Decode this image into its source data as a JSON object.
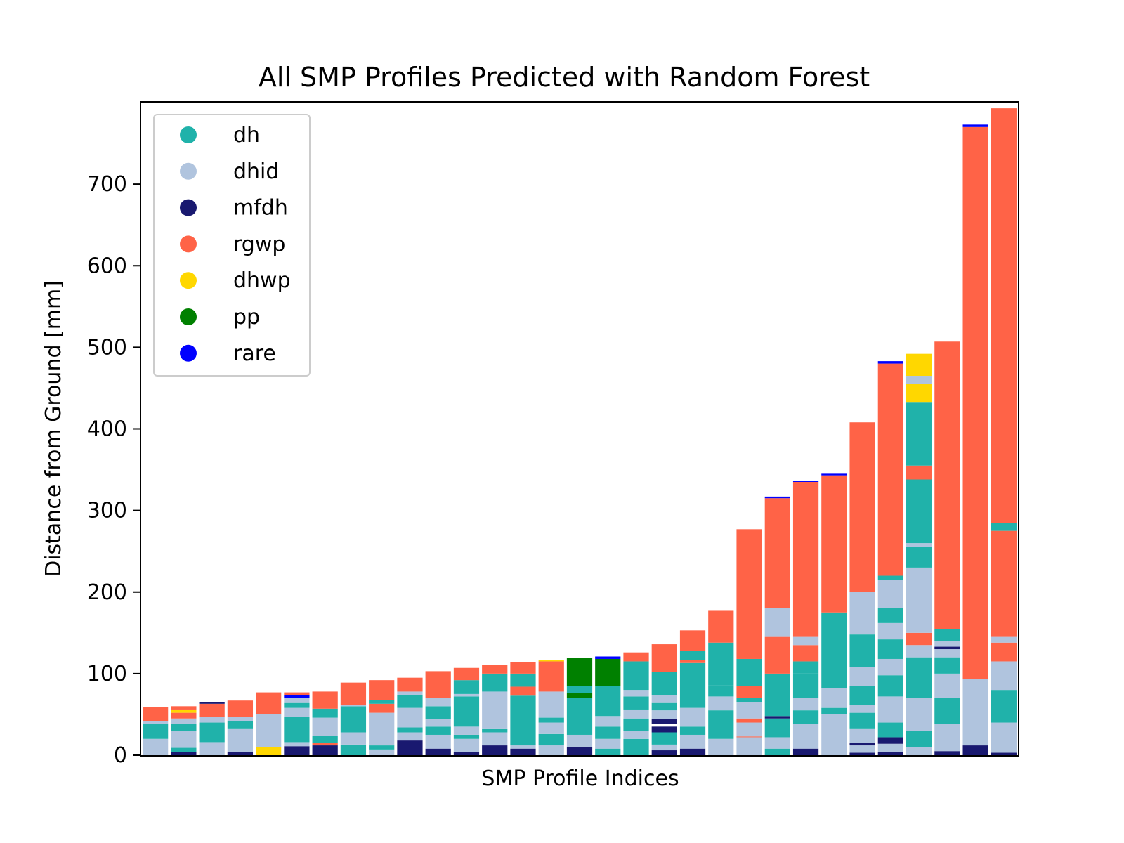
{
  "chart_data": {
    "type": "bar",
    "stacked": true,
    "title": "All SMP Profiles Predicted with Random Forest",
    "xlabel": "SMP Profile Indices",
    "ylabel": "Distance from Ground [mm]",
    "ylim": [
      0,
      800
    ],
    "yticks": [
      0,
      100,
      200,
      300,
      400,
      500,
      600,
      700
    ],
    "legend_position": "upper-left",
    "classes": [
      {
        "name": "dh",
        "color": "#20b2aa"
      },
      {
        "name": "dhid",
        "color": "#b0c4de"
      },
      {
        "name": "mfdh",
        "color": "#191970"
      },
      {
        "name": "rgwp",
        "color": "#ff6347"
      },
      {
        "name": "dhwp",
        "color": "#ffd700"
      },
      {
        "name": "pp",
        "color": "#008000"
      },
      {
        "name": "rare",
        "color": "#0000ff"
      }
    ],
    "profiles": [
      [
        [
          "dhid",
          0,
          20
        ],
        [
          "dh",
          20,
          38
        ],
        [
          "dhid",
          38,
          42
        ],
        [
          "rgwp",
          42,
          59
        ]
      ],
      [
        [
          "mfdh",
          0,
          4
        ],
        [
          "dh",
          4,
          9
        ],
        [
          "dhid",
          9,
          30
        ],
        [
          "dh",
          30,
          38
        ],
        [
          "dhid",
          38,
          45
        ],
        [
          "rgwp",
          45,
          52
        ],
        [
          "dhwp",
          52,
          56
        ],
        [
          "rgwp",
          56,
          60
        ]
      ],
      [
        [
          "dhid",
          0,
          16
        ],
        [
          "dh",
          16,
          40
        ],
        [
          "dhid",
          40,
          47
        ],
        [
          "rgwp",
          47,
          63
        ],
        [
          "mfdh",
          63,
          65
        ]
      ],
      [
        [
          "mfdh",
          0,
          4
        ],
        [
          "dhid",
          4,
          32
        ],
        [
          "dh",
          32,
          42
        ],
        [
          "dhid",
          42,
          47
        ],
        [
          "rgwp",
          47,
          67
        ]
      ],
      [
        [
          "dhwp",
          0,
          10
        ],
        [
          "dhid",
          10,
          50
        ],
        [
          "rgwp",
          50,
          77
        ]
      ],
      [
        [
          "mfdh",
          0,
          11
        ],
        [
          "dhid",
          11,
          16
        ],
        [
          "dh",
          16,
          47
        ],
        [
          "dhid",
          47,
          58
        ],
        [
          "dh",
          58,
          64
        ],
        [
          "dhid",
          64,
          70
        ],
        [
          "rare",
          70,
          74
        ],
        [
          "rgwp",
          74,
          77
        ]
      ],
      [
        [
          "mfdh",
          0,
          12
        ],
        [
          "rgwp",
          12,
          15
        ],
        [
          "dh",
          15,
          24
        ],
        [
          "dhid",
          24,
          46
        ],
        [
          "dh",
          46,
          57
        ],
        [
          "rgwp",
          57,
          78
        ]
      ],
      [
        [
          "dh",
          0,
          13
        ],
        [
          "dhid",
          13,
          28
        ],
        [
          "dh",
          28,
          60
        ],
        [
          "dhid",
          60,
          62
        ],
        [
          "rgwp",
          62,
          89
        ]
      ],
      [
        [
          "dhid",
          0,
          7
        ],
        [
          "dh",
          7,
          12
        ],
        [
          "dhid",
          12,
          52
        ],
        [
          "rgwp",
          52,
          63
        ],
        [
          "dh",
          63,
          68
        ],
        [
          "rgwp",
          68,
          92
        ]
      ],
      [
        [
          "mfdh",
          0,
          18
        ],
        [
          "dhid",
          18,
          28
        ],
        [
          "dh",
          28,
          34
        ],
        [
          "dhid",
          34,
          58
        ],
        [
          "dh",
          58,
          74
        ],
        [
          "dhid",
          74,
          78
        ],
        [
          "rgwp",
          78,
          95
        ]
      ],
      [
        [
          "mfdh",
          0,
          8
        ],
        [
          "dhid",
          8,
          25
        ],
        [
          "dh",
          25,
          35
        ],
        [
          "dhid",
          35,
          44
        ],
        [
          "dh",
          44,
          60
        ],
        [
          "dhid",
          60,
          70
        ],
        [
          "rgwp",
          70,
          103
        ]
      ],
      [
        [
          "mfdh",
          0,
          4
        ],
        [
          "dhid",
          4,
          20
        ],
        [
          "dh",
          20,
          25
        ],
        [
          "dhid",
          25,
          35
        ],
        [
          "dh",
          35,
          72
        ],
        [
          "dhid",
          72,
          75
        ],
        [
          "dh",
          75,
          92
        ],
        [
          "rgwp",
          92,
          107
        ]
      ],
      [
        [
          "mfdh",
          0,
          12
        ],
        [
          "dhid",
          12,
          28
        ],
        [
          "dh",
          28,
          32
        ],
        [
          "dhid",
          32,
          78
        ],
        [
          "dh",
          78,
          100
        ],
        [
          "rgwp",
          100,
          111
        ]
      ],
      [
        [
          "mfdh",
          0,
          8
        ],
        [
          "dhid",
          8,
          12
        ],
        [
          "dh",
          12,
          73
        ],
        [
          "rgwp",
          73,
          84
        ],
        [
          "dh",
          84,
          100
        ],
        [
          "rgwp",
          100,
          114
        ]
      ],
      [
        [
          "dhid",
          0,
          12
        ],
        [
          "dh",
          12,
          26
        ],
        [
          "dhid",
          26,
          40
        ],
        [
          "dh",
          40,
          46
        ],
        [
          "dhid",
          46,
          78
        ],
        [
          "rgwp",
          78,
          115
        ],
        [
          "dhwp",
          115,
          117
        ]
      ],
      [
        [
          "mfdh",
          0,
          10
        ],
        [
          "dhid",
          10,
          25
        ],
        [
          "dh",
          25,
          70
        ],
        [
          "pp",
          70,
          76
        ],
        [
          "dh",
          76,
          85
        ],
        [
          "pp",
          85,
          119
        ]
      ],
      [
        [
          "dh",
          0,
          8
        ],
        [
          "dhid",
          8,
          20
        ],
        [
          "dh",
          20,
          35
        ],
        [
          "dhid",
          35,
          48
        ],
        [
          "dh",
          48,
          85
        ],
        [
          "pp",
          85,
          118
        ],
        [
          "rare",
          118,
          121
        ]
      ],
      [
        [
          "dh",
          0,
          20
        ],
        [
          "dhid",
          20,
          30
        ],
        [
          "dh",
          30,
          45
        ],
        [
          "dhid",
          45,
          56
        ],
        [
          "dh",
          56,
          72
        ],
        [
          "dhid",
          72,
          80
        ],
        [
          "dh",
          80,
          115
        ],
        [
          "rgwp",
          115,
          126
        ]
      ],
      [
        [
          "mfdh",
          0,
          6
        ],
        [
          "dhid",
          6,
          13
        ],
        [
          "dh",
          13,
          28
        ],
        [
          "mfdh",
          28,
          35
        ],
        [
          "mfdh",
          38,
          44
        ],
        [
          "dhid",
          44,
          55
        ],
        [
          "dh",
          55,
          64
        ],
        [
          "dhid",
          64,
          74
        ],
        [
          "dh",
          74,
          102
        ],
        [
          "rgwp",
          102,
          136
        ]
      ],
      [
        [
          "mfdh",
          0,
          8
        ],
        [
          "dhid",
          8,
          25
        ],
        [
          "dh",
          25,
          35
        ],
        [
          "dhid",
          35,
          58
        ],
        [
          "dh",
          58,
          113
        ],
        [
          "rgwp",
          113,
          117
        ],
        [
          "dh",
          117,
          128
        ],
        [
          "rgwp",
          128,
          153
        ]
      ],
      [
        [
          "dhid",
          0,
          20
        ],
        [
          "dh",
          20,
          55
        ],
        [
          "dhid",
          55,
          72
        ],
        [
          "dh",
          72,
          86
        ],
        [
          "dh",
          86,
          138
        ],
        [
          "rgwp",
          138,
          177
        ]
      ],
      [
        [
          "dhid",
          0,
          22
        ],
        [
          "rgwp",
          22,
          23
        ],
        [
          "dhid",
          23,
          40
        ],
        [
          "rgwp",
          40,
          45
        ],
        [
          "dhid",
          45,
          65
        ],
        [
          "dh",
          65,
          70
        ],
        [
          "rgwp",
          70,
          85
        ],
        [
          "dh",
          85,
          118
        ],
        [
          "rgwp",
          118,
          277
        ]
      ],
      [
        [
          "dh",
          0,
          8
        ],
        [
          "dhid",
          8,
          22
        ],
        [
          "dh",
          22,
          45
        ],
        [
          "mfdh",
          45,
          48
        ],
        [
          "dh",
          48,
          70
        ],
        [
          "dh",
          70,
          100
        ],
        [
          "rgwp",
          100,
          145
        ],
        [
          "dhid",
          145,
          180
        ],
        [
          "rgwp",
          180,
          195
        ],
        [
          "rgwp",
          195,
          315
        ],
        [
          "rare",
          315,
          317
        ]
      ],
      [
        [
          "mfdh",
          0,
          8
        ],
        [
          "dhid",
          8,
          38
        ],
        [
          "dh",
          38,
          55
        ],
        [
          "dhid",
          55,
          70
        ],
        [
          "dh",
          70,
          100
        ],
        [
          "dh",
          100,
          115
        ],
        [
          "rgwp",
          115,
          135
        ],
        [
          "dhid",
          135,
          145
        ],
        [
          "rgwp",
          145,
          335
        ],
        [
          "rare",
          335,
          336
        ]
      ],
      [
        [
          "dhid",
          0,
          50
        ],
        [
          "dh",
          50,
          58
        ],
        [
          "dhid",
          58,
          82
        ],
        [
          "dh",
          82,
          175
        ],
        [
          "rgwp",
          175,
          343
        ],
        [
          "rare",
          343,
          345
        ]
      ],
      [
        [
          "mfdh",
          0,
          3
        ],
        [
          "dhid",
          3,
          12
        ],
        [
          "mfdh",
          12,
          15
        ],
        [
          "dhid",
          15,
          32
        ],
        [
          "dh",
          32,
          52
        ],
        [
          "dhid",
          52,
          62
        ],
        [
          "dh",
          62,
          85
        ],
        [
          "dhid",
          85,
          108
        ],
        [
          "dh",
          108,
          148
        ],
        [
          "dhid",
          148,
          200
        ],
        [
          "rgwp",
          200,
          408
        ]
      ],
      [
        [
          "mfdh",
          0,
          4
        ],
        [
          "dhid",
          4,
          14
        ],
        [
          "mfdh",
          14,
          22
        ],
        [
          "dh",
          22,
          40
        ],
        [
          "dhid",
          40,
          72
        ],
        [
          "dh",
          72,
          98
        ],
        [
          "dhid",
          98,
          118
        ],
        [
          "dh",
          118,
          142
        ],
        [
          "dhid",
          142,
          162
        ],
        [
          "dh",
          162,
          180
        ],
        [
          "dhid",
          180,
          215
        ],
        [
          "dh",
          215,
          220
        ],
        [
          "rgwp",
          220,
          480
        ],
        [
          "rare",
          480,
          483
        ]
      ],
      [
        [
          "dhid",
          0,
          10
        ],
        [
          "dh",
          10,
          30
        ],
        [
          "dhid",
          30,
          70
        ],
        [
          "dh",
          70,
          120
        ],
        [
          "dhid",
          120,
          135
        ],
        [
          "rgwp",
          135,
          150
        ],
        [
          "dhid",
          150,
          230
        ],
        [
          "dh",
          230,
          255
        ],
        [
          "dhid",
          255,
          260
        ],
        [
          "dh",
          260,
          338
        ],
        [
          "rgwp",
          338,
          355
        ],
        [
          "dh",
          355,
          433
        ],
        [
          "dhwp",
          433,
          455
        ],
        [
          "dhid",
          455,
          465
        ],
        [
          "dhwp",
          465,
          492
        ]
      ],
      [
        [
          "mfdh",
          0,
          5
        ],
        [
          "dhid",
          5,
          38
        ],
        [
          "dh",
          38,
          70
        ],
        [
          "dhid",
          70,
          100
        ],
        [
          "dh",
          100,
          120
        ],
        [
          "dhid",
          120,
          130
        ],
        [
          "mfdh",
          130,
          133
        ],
        [
          "dhid",
          133,
          140
        ],
        [
          "dh",
          140,
          155
        ],
        [
          "rgwp",
          155,
          507
        ]
      ],
      [
        [
          "mfdh",
          0,
          12
        ],
        [
          "dhid",
          12,
          93
        ],
        [
          "rgwp",
          93,
          770
        ],
        [
          "rare",
          770,
          773
        ]
      ],
      [
        [
          "mfdh",
          0,
          3
        ],
        [
          "dhid",
          3,
          40
        ],
        [
          "dh",
          40,
          80
        ],
        [
          "dhid",
          80,
          115
        ],
        [
          "rgwp",
          115,
          138
        ],
        [
          "dhid",
          138,
          145
        ],
        [
          "rgwp",
          145,
          275
        ],
        [
          "dh",
          275,
          285
        ],
        [
          "rgwp",
          285,
          793
        ]
      ]
    ]
  }
}
